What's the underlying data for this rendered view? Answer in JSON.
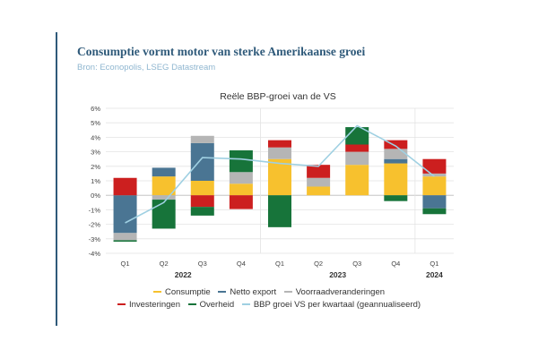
{
  "header": {
    "title": "Consumptie vormt motor van sterke Amerikaanse groei",
    "source": "Bron: Econopolis, LSEG Datastream"
  },
  "colors": {
    "accent": "#2f5a7a",
    "consumptie": "#f7c12e",
    "netto_export": "#4a7593",
    "voorraad": "#b5b5b5",
    "investeringen": "#cc1f1f",
    "overheid": "#17743a",
    "bbp_line": "#9fd0e2"
  },
  "chart_data": {
    "type": "bar",
    "stacked": true,
    "title": "Reële BBP-groei van de VS",
    "ylim": [
      -4,
      6
    ],
    "yticks": [
      "-4%",
      "-3%",
      "-2%",
      "-1%",
      "0%",
      "1%",
      "2%",
      "3%",
      "4%",
      "5%",
      "6%"
    ],
    "categories": [
      "Q1",
      "Q2",
      "Q3",
      "Q4",
      "Q1",
      "Q2",
      "Q3",
      "Q4",
      "Q1"
    ],
    "year_labels": [
      {
        "label": "2022",
        "start": 0,
        "end": 3
      },
      {
        "label": "2023",
        "start": 4,
        "end": 7
      },
      {
        "label": "2024",
        "start": 8,
        "end": 8
      }
    ],
    "grid": true,
    "legend_position": "bottom",
    "series": [
      {
        "name": "Consumptie",
        "key": "consumptie",
        "values": [
          0.0,
          1.3,
          1.0,
          0.8,
          2.5,
          0.6,
          2.1,
          2.2,
          1.3
        ]
      },
      {
        "name": "Netto export",
        "key": "netto_export",
        "values": [
          -2.6,
          0.6,
          2.6,
          0.0,
          0.0,
          0.0,
          0.0,
          0.3,
          -0.9
        ]
      },
      {
        "name": "Voorraadveranderingen",
        "key": "voorraad",
        "values": [
          -0.5,
          -0.3,
          0.5,
          0.8,
          0.8,
          0.6,
          0.9,
          0.7,
          0.2
        ]
      },
      {
        "name": "Investeringen",
        "key": "investeringen",
        "values": [
          1.2,
          0.0,
          -0.8,
          -0.95,
          0.5,
          0.9,
          0.5,
          0.6,
          1.0
        ]
      },
      {
        "name": "Overheid",
        "key": "overheid",
        "values": [
          -0.1,
          -2.0,
          -0.6,
          1.5,
          -2.2,
          0.0,
          1.2,
          -0.4,
          -0.4
        ]
      },
      {
        "name": "BBP groei VS per kwartaal (geannualiseerd)",
        "key": "bbp_line",
        "type": "line",
        "values": [
          -1.9,
          -0.5,
          2.6,
          2.5,
          2.2,
          2.0,
          4.8,
          3.4,
          1.3
        ]
      }
    ]
  }
}
